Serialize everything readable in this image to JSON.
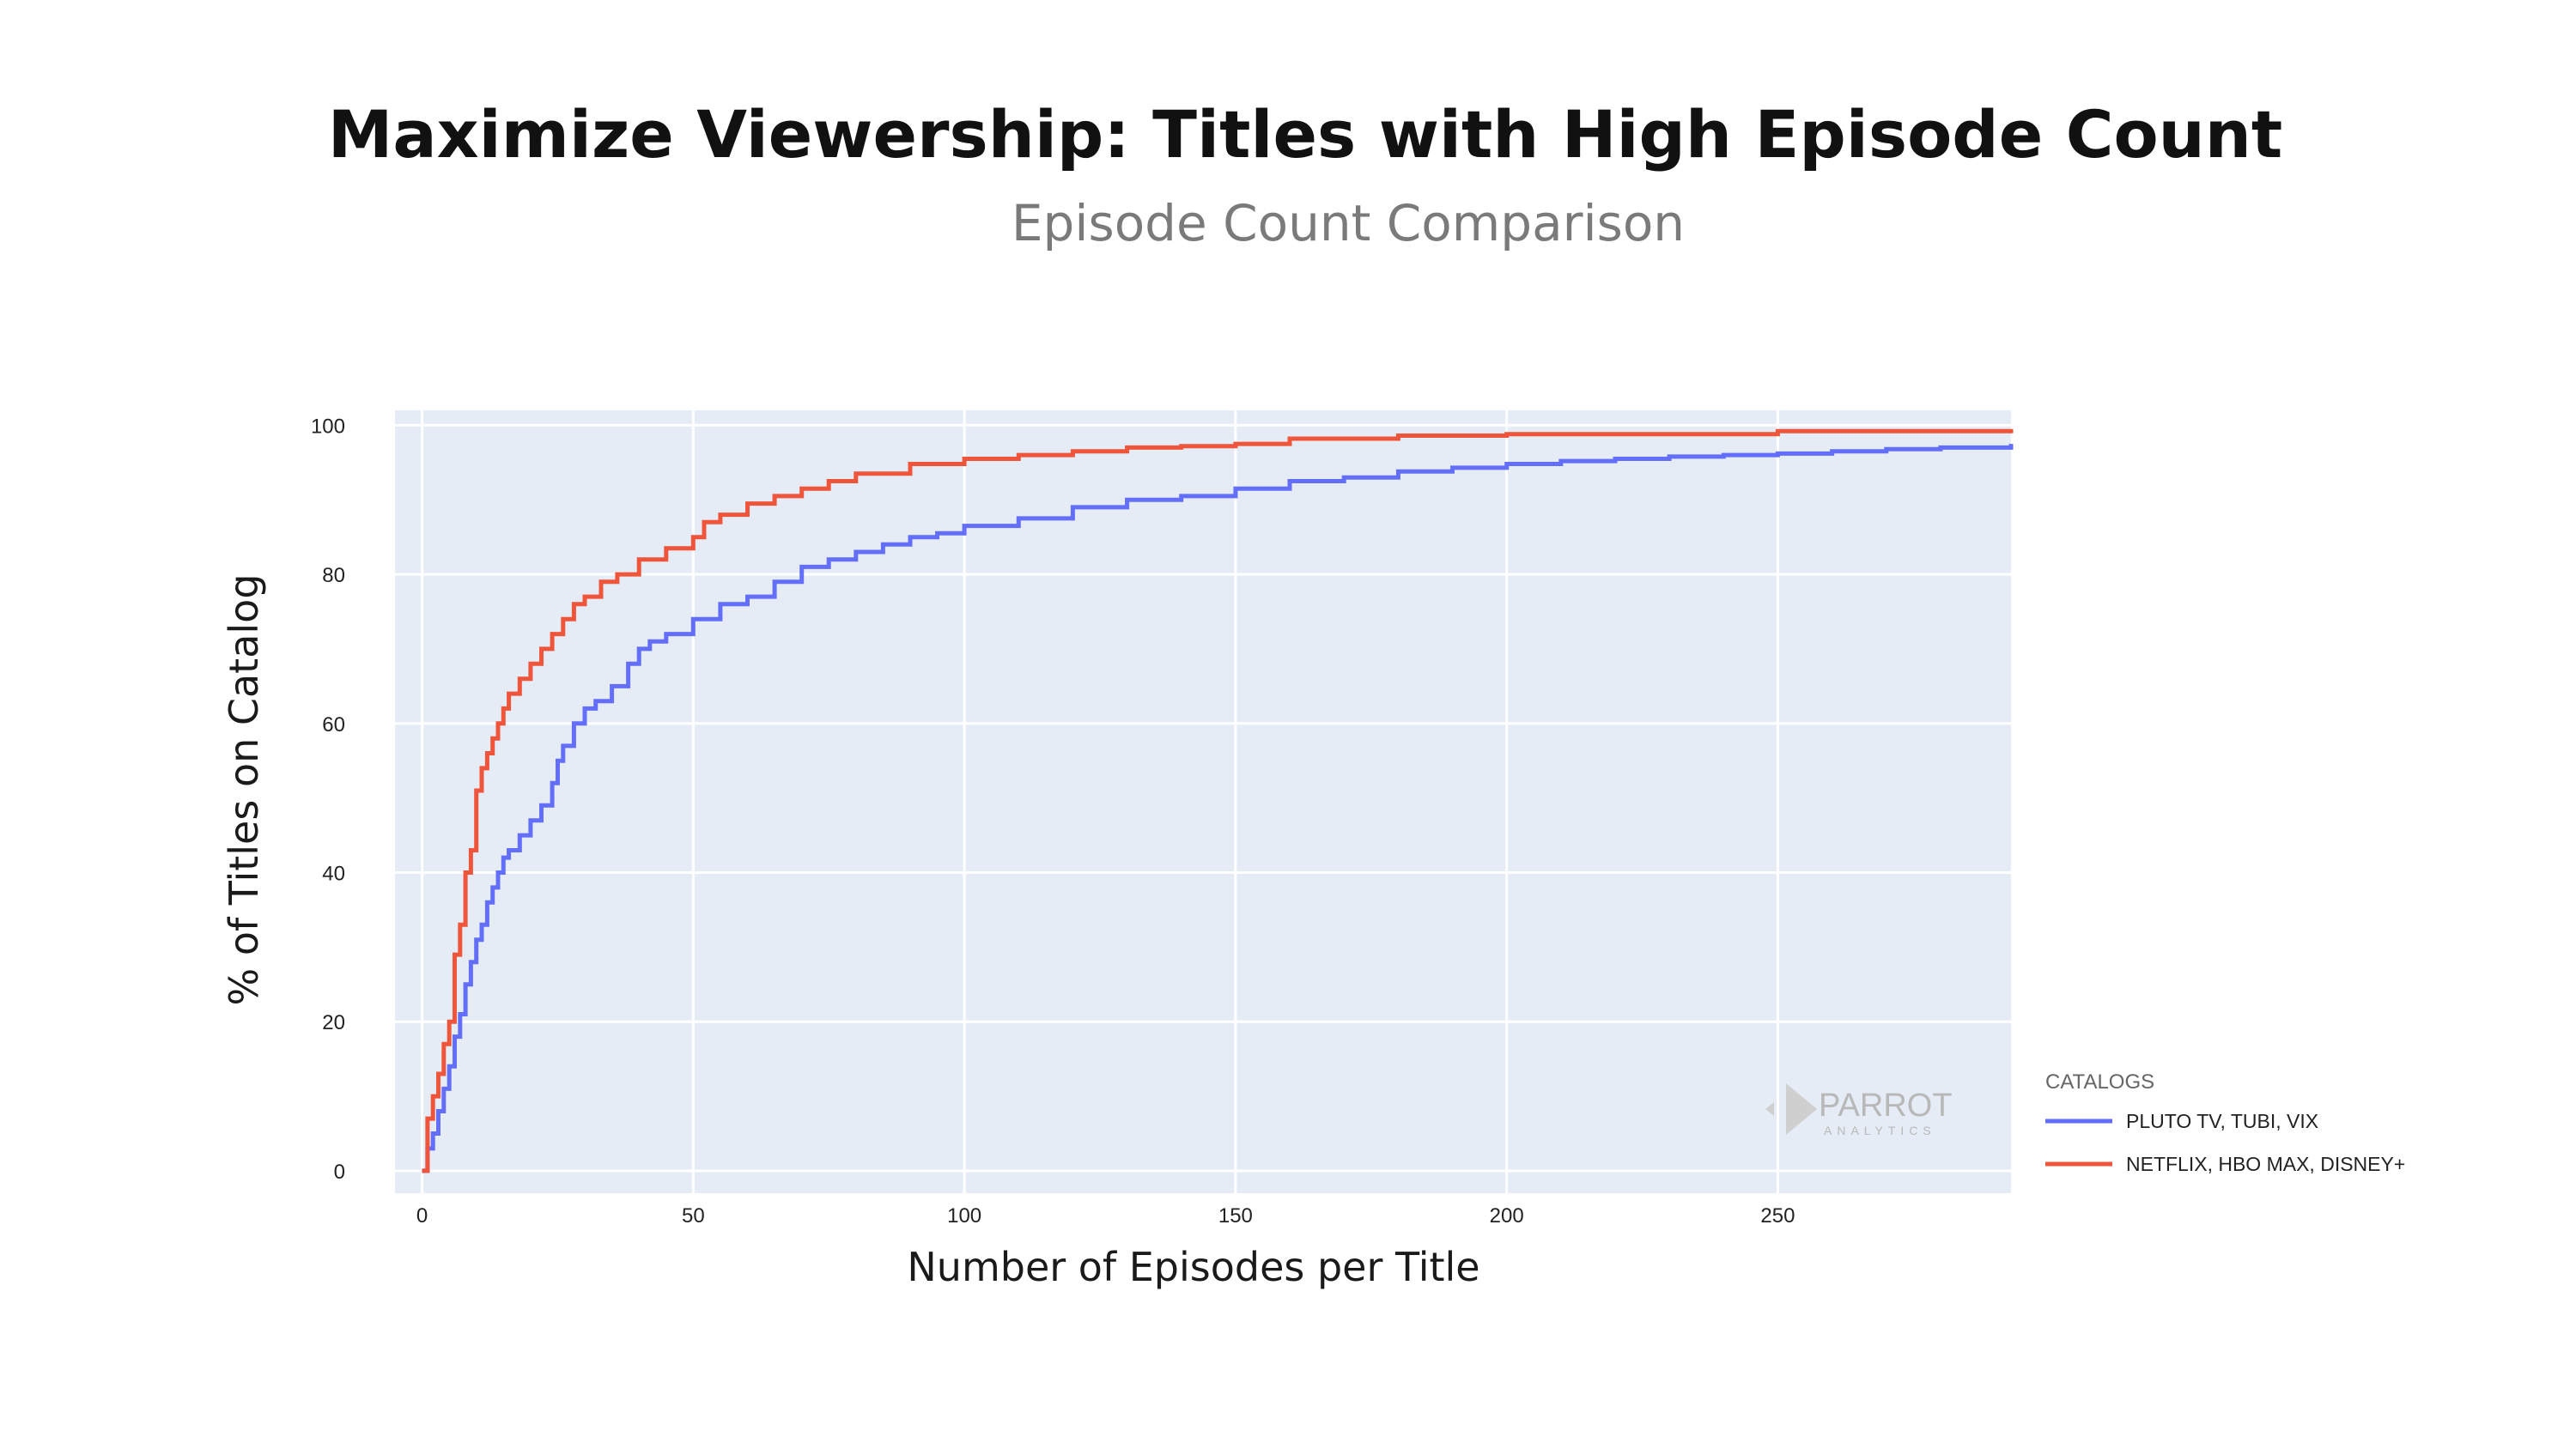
{
  "header": {
    "title": "Maximize Viewership: Titles with High Episode Count",
    "subtitle": "Episode Count Comparison"
  },
  "watermark": {
    "name": "PARROT",
    "tagline": "ANALYTICS",
    "icon": "parrot-logo-icon"
  },
  "chart_data": {
    "type": "line",
    "title": "Maximize Viewership: Titles with High Episode Count",
    "subtitle": "Episode Count Comparison",
    "xlabel": "Number of Episodes per Title",
    "ylabel": "% of Titles on Catalog",
    "xlim": [
      -5,
      293
    ],
    "ylim": [
      -3,
      102
    ],
    "xticks": [
      0,
      50,
      100,
      150,
      200,
      250
    ],
    "yticks": [
      0,
      20,
      40,
      60,
      80,
      100
    ],
    "grid": true,
    "background": "#e5ecf6",
    "legend": {
      "title": "CATALOGS",
      "placement": "right"
    },
    "series": [
      {
        "name": "PLUTO TV, TUBI, VIX",
        "color": "#636efa",
        "step": true,
        "x": [
          0,
          1,
          2,
          3,
          4,
          5,
          6,
          7,
          8,
          9,
          10,
          11,
          12,
          13,
          14,
          15,
          16,
          18,
          20,
          22,
          24,
          25,
          26,
          28,
          30,
          32,
          35,
          38,
          40,
          42,
          45,
          50,
          55,
          60,
          65,
          70,
          75,
          80,
          85,
          90,
          95,
          100,
          110,
          120,
          130,
          140,
          150,
          160,
          170,
          180,
          190,
          200,
          210,
          220,
          230,
          240,
          250,
          260,
          270,
          280,
          293
        ],
        "y": [
          0,
          3,
          5,
          8,
          11,
          14,
          18,
          21,
          25,
          28,
          31,
          33,
          36,
          38,
          40,
          42,
          43,
          45,
          47,
          49,
          52,
          55,
          57,
          60,
          62,
          63,
          65,
          68,
          70,
          71,
          72,
          74,
          76,
          77,
          79,
          81,
          82,
          83,
          84,
          85,
          85.5,
          86.5,
          87.5,
          89,
          90,
          90.5,
          91.5,
          92.5,
          93,
          93.8,
          94.3,
          94.8,
          95.2,
          95.5,
          95.8,
          96,
          96.2,
          96.5,
          96.8,
          97,
          97.5
        ]
      },
      {
        "name": "NETFLIX, HBO MAX, DISNEY+",
        "color": "#ef553b",
        "step": true,
        "x": [
          0,
          1,
          2,
          3,
          4,
          5,
          6,
          7,
          8,
          9,
          10,
          11,
          12,
          13,
          14,
          15,
          16,
          18,
          20,
          22,
          24,
          26,
          28,
          30,
          33,
          36,
          40,
          45,
          50,
          52,
          55,
          60,
          65,
          70,
          75,
          80,
          90,
          100,
          110,
          120,
          130,
          140,
          150,
          160,
          180,
          200,
          250,
          293
        ],
        "y": [
          0,
          7,
          10,
          13,
          17,
          20,
          29,
          33,
          40,
          43,
          51,
          54,
          56,
          58,
          60,
          62,
          64,
          66,
          68,
          70,
          72,
          74,
          76,
          77,
          79,
          80,
          82,
          83.5,
          85,
          87,
          88,
          89.5,
          90.5,
          91.5,
          92.5,
          93.5,
          94.8,
          95.5,
          96,
          96.5,
          97,
          97.2,
          97.5,
          98.2,
          98.6,
          98.8,
          99.2,
          99.5
        ]
      }
    ]
  }
}
